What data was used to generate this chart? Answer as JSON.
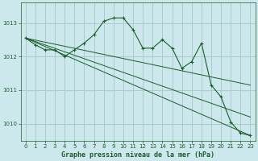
{
  "background_color": "#cce8ec",
  "grid_color": "#aacccc",
  "line_color": "#1a5c2a",
  "xlabel": "Graphe pression niveau de la mer (hPa)",
  "xlim": [
    -0.5,
    23.5
  ],
  "ylim": [
    1009.5,
    1013.6
  ],
  "yticks": [
    1010,
    1011,
    1012,
    1013
  ],
  "xticks": [
    0,
    1,
    2,
    3,
    4,
    5,
    6,
    7,
    8,
    9,
    10,
    11,
    12,
    13,
    14,
    15,
    16,
    17,
    18,
    19,
    20,
    21,
    22,
    23
  ],
  "main_series": {
    "x": [
      0,
      1,
      2,
      3,
      4,
      5,
      6,
      7,
      8,
      9,
      10,
      11,
      12,
      13,
      14,
      15,
      16,
      17,
      18,
      19,
      20,
      21,
      22,
      23
    ],
    "y": [
      1012.55,
      1012.35,
      1012.2,
      1012.2,
      1012.0,
      1012.2,
      1012.4,
      1012.65,
      1013.05,
      1013.15,
      1013.15,
      1012.8,
      1012.25,
      1012.25,
      1012.5,
      1012.25,
      1011.65,
      1011.85,
      1012.4,
      1011.15,
      1010.8,
      1010.05,
      1009.72,
      1009.65
    ]
  },
  "trend_lines": [
    {
      "x": [
        0,
        23
      ],
      "y": [
        1012.55,
        1009.65
      ]
    },
    {
      "x": [
        0,
        23
      ],
      "y": [
        1012.55,
        1010.2
      ]
    },
    {
      "x": [
        0,
        23
      ],
      "y": [
        1012.55,
        1011.15
      ]
    }
  ]
}
